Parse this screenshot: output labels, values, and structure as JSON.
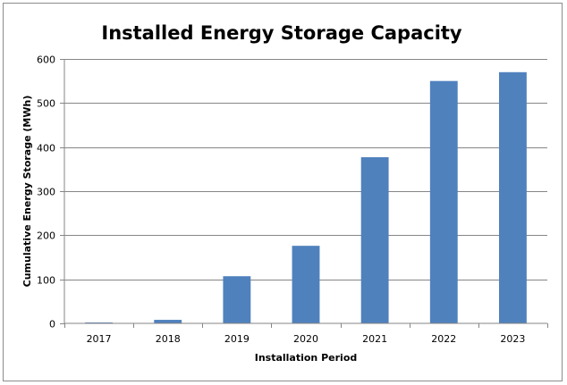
{
  "chart_data": {
    "type": "bar",
    "title": "Installed Energy Storage Capacity",
    "xlabel": "Installation Period",
    "ylabel": "Cumulative Energy Storage (MWh)",
    "categories": [
      "2017",
      "2018",
      "2019",
      "2020",
      "2021",
      "2022",
      "2023"
    ],
    "values": [
      2,
      8,
      107,
      176,
      377,
      550,
      570
    ],
    "ylim": [
      0,
      600
    ],
    "yticks": [
      0,
      100,
      200,
      300,
      400,
      500,
      600
    ],
    "grid": true,
    "legend": "none",
    "bar_color": "#4F81BD",
    "gridline_color": "#868686"
  }
}
